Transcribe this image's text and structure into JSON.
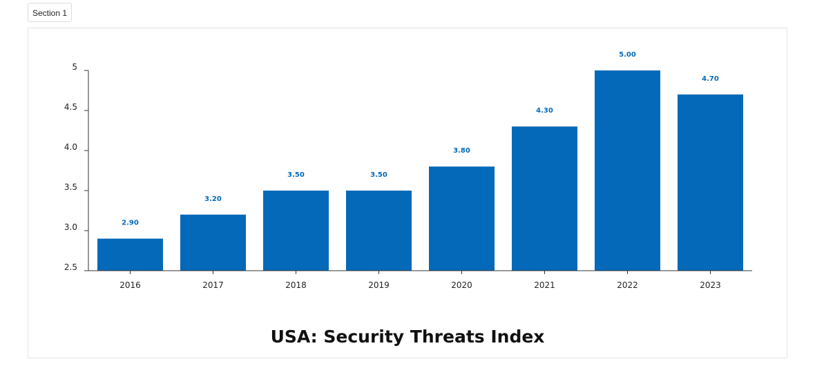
{
  "section_tab": {
    "label": "Section 1"
  },
  "chart_data": {
    "type": "bar",
    "title": "USA: Security Threats Index",
    "xlabel": "",
    "ylabel": "",
    "categories": [
      "2016",
      "2017",
      "2018",
      "2019",
      "2020",
      "2021",
      "2022",
      "2023"
    ],
    "values": [
      2.9,
      3.2,
      3.5,
      3.5,
      3.8,
      4.3,
      5.0,
      4.7
    ],
    "value_labels": [
      "2.90",
      "3.20",
      "3.50",
      "3.50",
      "3.80",
      "4.30",
      "5.00",
      "4.70"
    ],
    "y_ticks": [
      {
        "value": 2.5,
        "label": "2.5"
      },
      {
        "value": 3.0,
        "label": "3.0"
      },
      {
        "value": 3.5,
        "label": "3.5"
      },
      {
        "value": 4.0,
        "label": "4.0"
      },
      {
        "value": 4.5,
        "label": "4.5"
      },
      {
        "value": 5.0,
        "label": "5"
      }
    ],
    "ylim": [
      2.5,
      5.0
    ],
    "grid": false,
    "legend": "none",
    "colors": {
      "bar": "#0369b8",
      "value_label": "#0369b8",
      "axis": "#333333",
      "tick_label": "#222222"
    }
  }
}
